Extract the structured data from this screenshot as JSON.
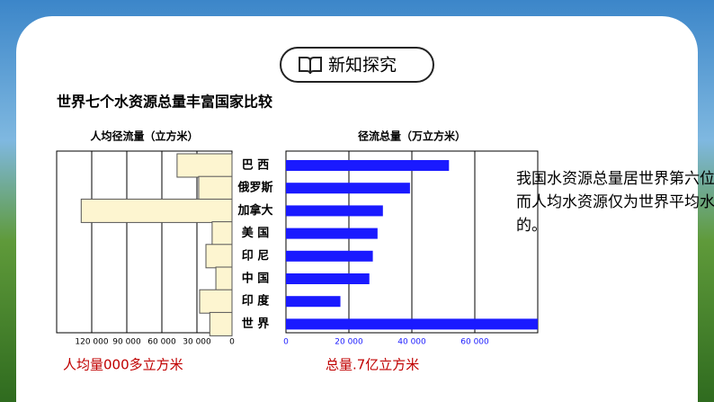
{
  "header": {
    "title": "新知探究"
  },
  "main_title": "世界七个水资源总量丰富国家比较",
  "side_text": "我国水资源总量居世界第六位，而人均水资源仅为世界平均水平的。",
  "notes": [
    "人均量000多立方米",
    "总量.7亿立方米"
  ],
  "chart_data": [
    {
      "type": "bar",
      "orientation": "horizontal",
      "reversed": true,
      "title": "人均径流量（立方米）",
      "color": "#fdf5d0",
      "values": [
        47000,
        28500,
        129000,
        17000,
        22300,
        13800,
        27700,
        19000
      ],
      "xlim": [
        0,
        150000
      ],
      "xticks": [
        {
          "value": 120000,
          "label": "120 000"
        },
        {
          "value": 90000,
          "label": "90 000"
        },
        {
          "value": 60000,
          "label": "60 000"
        },
        {
          "value": 30000,
          "label": "30 000"
        },
        0
      ],
      "grid": true
    },
    {
      "type": "bar",
      "orientation": "horizontal",
      "title": "径流总量（万立方米）",
      "color": "#1a1aff",
      "categories": [
        "巴 西",
        "俄罗斯",
        "加拿大",
        "美 国",
        "印 尼",
        "中 国",
        "印 度",
        "世 界"
      ],
      "values": [
        51800,
        39400,
        30800,
        29100,
        27600,
        26500,
        17300,
        80000
      ],
      "xlim": [
        0,
        80000
      ],
      "xticks": [
        0,
        {
          "value": 20000,
          "label": "20 000"
        },
        {
          "value": 40000,
          "label": "40 000"
        },
        {
          "value": 60000,
          "label": "60 000"
        }
      ],
      "grid": true
    }
  ]
}
